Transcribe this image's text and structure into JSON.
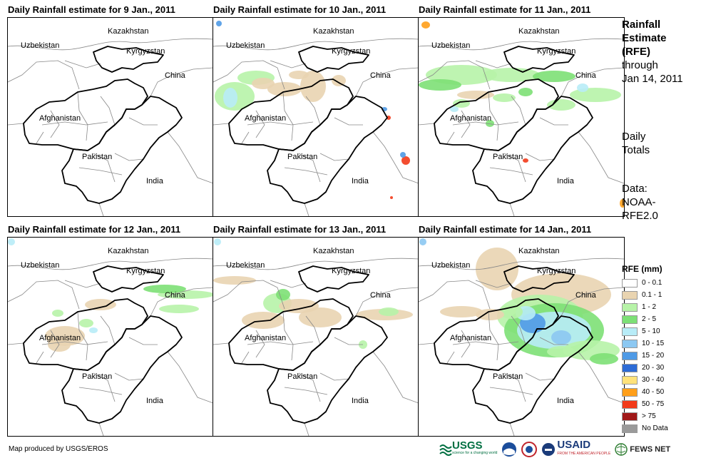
{
  "panels": [
    {
      "title": "Daily Rainfall estimate for 9 Jan., 2011"
    },
    {
      "title": "Daily Rainfall estimate for 10 Jan., 2011"
    },
    {
      "title": "Daily Rainfall estimate for 11 Jan., 2011"
    },
    {
      "title": "Daily Rainfall estimate for 12 Jan., 2011"
    },
    {
      "title": "Daily Rainfall estimate for 13 Jan., 2011"
    },
    {
      "title": "Daily Rainfall estimate for 14 Jan., 2011"
    }
  ],
  "map_labels": {
    "kazakhstan": "Kazakhstan",
    "kyrgyzstan": "Kyrgyzstan",
    "uzbekistan": "Uzbekistan",
    "china": "China",
    "afghanistan": "Afghanistan",
    "pakistan": "Pakistan",
    "india": "India"
  },
  "side": {
    "title_line1": "Rainfall",
    "title_line2": "Estimate",
    "title_line3": "(RFE)",
    "title_line4": "through",
    "title_line5": "Jan 14, 2011",
    "totals_line1": "Daily",
    "totals_line2": "Totals",
    "data_line1": "Data:",
    "data_line2": "NOAA-",
    "data_line3": "RFE2.0"
  },
  "legend": {
    "title": "RFE (mm)",
    "items": [
      {
        "label": "0 - 0.1",
        "color": "#ffffff"
      },
      {
        "label": "0.1 - 1",
        "color": "#e9d4b1"
      },
      {
        "label": "1 - 2",
        "color": "#b7f3a8"
      },
      {
        "label": "2 - 5",
        "color": "#7de076"
      },
      {
        "label": "5 - 10",
        "color": "#b8ecf7"
      },
      {
        "label": "10 - 15",
        "color": "#8cc8f2"
      },
      {
        "label": "15 - 20",
        "color": "#4f9ae6"
      },
      {
        "label": "20 - 30",
        "color": "#2d6bd6"
      },
      {
        "label": "30 - 40",
        "color": "#ffe27a"
      },
      {
        "label": "40 - 50",
        "color": "#ff9f1a"
      },
      {
        "label": "50 - 75",
        "color": "#f23a1a"
      },
      {
        "label": "> 75",
        "color": "#a01818"
      },
      {
        "label": "No Data",
        "color": "#9a9a9a"
      }
    ]
  },
  "credit": "Map produced by USGS/EROS",
  "logos": {
    "usgs": "USGS",
    "usgs_tagline": "science for a changing world",
    "usaid": "USAID",
    "usaid_tagline": "FROM THE AMERICAN PEOPLE",
    "fewsnet": "FEWS NET"
  }
}
